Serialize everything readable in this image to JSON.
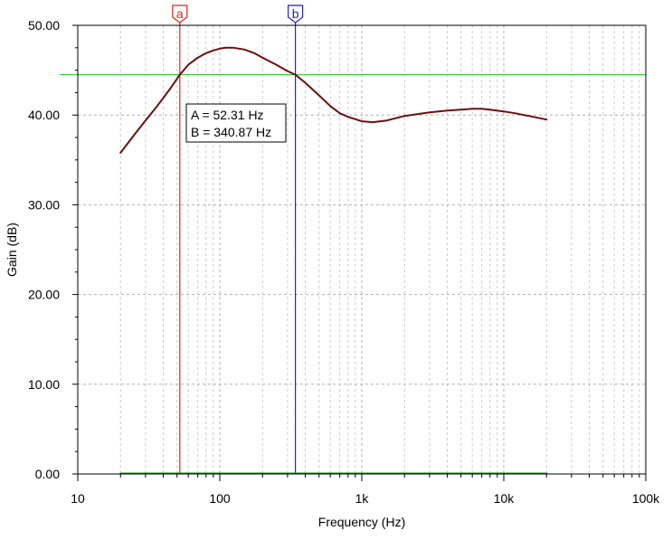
{
  "chart_data": {
    "type": "line",
    "xlabel": "Frequency (Hz)",
    "ylabel": "Gain (dB)",
    "x_scale": "log",
    "xlim": [
      10,
      100000
    ],
    "ylim": [
      0,
      50
    ],
    "grid": true,
    "x_ticks": [
      {
        "value": 10,
        "label": "10"
      },
      {
        "value": 100,
        "label": "100"
      },
      {
        "value": 1000,
        "label": "1k"
      },
      {
        "value": 10000,
        "label": "10k"
      },
      {
        "value": 100000,
        "label": "100k"
      }
    ],
    "y_ticks": [
      {
        "value": 0,
        "label": "0.00"
      },
      {
        "value": 10,
        "label": "10.00"
      },
      {
        "value": 20,
        "label": "20.00"
      },
      {
        "value": 30,
        "label": "30.00"
      },
      {
        "value": 40,
        "label": "40.00"
      },
      {
        "value": 50,
        "label": "50.00"
      }
    ],
    "series": [
      {
        "color": "#6b0f0f",
        "x": [
          20,
          25,
          30,
          35,
          40,
          45,
          52.31,
          60,
          70,
          80,
          90,
          100,
          110,
          125,
          150,
          175,
          200,
          250,
          300,
          340.87,
          400,
          500,
          600,
          700,
          800,
          1000,
          1200,
          1500,
          2000,
          3000,
          4000,
          5000,
          6000,
          7000,
          8000,
          10000,
          12000,
          15000,
          20000
        ],
        "y": [
          35.8,
          37.8,
          39.4,
          40.7,
          41.9,
          43.0,
          44.5,
          45.6,
          46.4,
          46.9,
          47.2,
          47.4,
          47.5,
          47.5,
          47.3,
          46.9,
          46.4,
          45.6,
          44.9,
          44.5,
          43.6,
          42.2,
          41.0,
          40.2,
          39.8,
          39.3,
          39.2,
          39.4,
          39.9,
          40.3,
          40.5,
          40.6,
          40.7,
          40.7,
          40.6,
          40.4,
          40.2,
          39.9,
          39.5
        ]
      },
      {
        "color": "#009900",
        "x": [
          20,
          20000
        ],
        "y": [
          0.05,
          0.05
        ]
      }
    ],
    "reference_line": {
      "y": 44.5,
      "color": "#33cc33"
    },
    "cursors": [
      {
        "tag": "a",
        "x": 52.31,
        "color": "#dd2222"
      },
      {
        "tag": "b",
        "x": 340.87,
        "color": "#2222bb"
      }
    ],
    "readout": [
      "A = 52.31 Hz",
      "B = 340.87 Hz"
    ]
  }
}
